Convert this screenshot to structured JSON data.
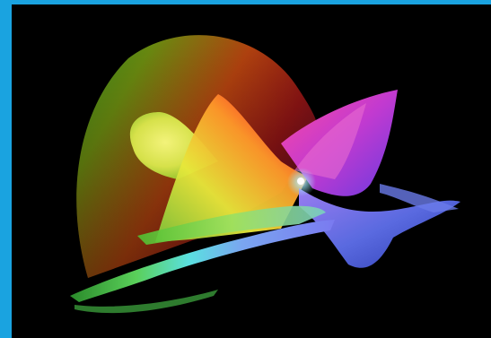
{
  "image": {
    "subject": "colorful-3d-surface-render",
    "colors": {
      "accent_bar": "#1aa3e0",
      "background": "#000000"
    }
  }
}
